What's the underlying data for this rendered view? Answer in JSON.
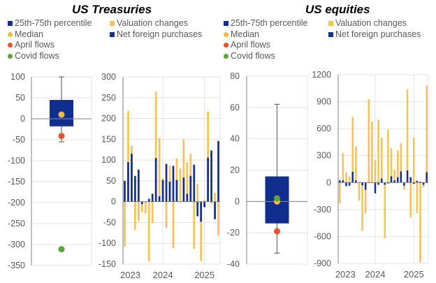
{
  "colors": {
    "box": "#0f2e8f",
    "median": "#f5b942",
    "april": "#e8532a",
    "covid": "#5aa43a",
    "valuation": "#f5c25a",
    "net_purchases": "#13308f",
    "grid": "#e3e3e3",
    "axis": "#808080"
  },
  "panels": [
    {
      "title": "US Treasuries",
      "legend_left": [
        "25th-75th percentile",
        "Median",
        "April flows",
        "Covid flows"
      ],
      "legend_right": [
        "Valuation changes",
        "Net foreign purchases"
      ]
    },
    {
      "title": "US equities",
      "legend_left": [
        "25th-75th percentile",
        "Median",
        "April flows",
        "Covid flows"
      ],
      "legend_right": [
        "Valuation changes",
        "Net foreign purchases"
      ]
    }
  ],
  "chart_data": [
    {
      "id": "treasuries-box",
      "type": "box",
      "title": "US Treasuries",
      "ylim": [
        -350,
        100
      ],
      "yticks": [
        100,
        50,
        0,
        -50,
        -100,
        -150,
        -200,
        -250,
        -300,
        -350
      ],
      "whisker_low": -55,
      "q1": -18,
      "q3": 45,
      "whisker_high": 100,
      "median": 10,
      "april_flows": -41,
      "covid_flows": -311,
      "grid": true
    },
    {
      "id": "treasuries-bars",
      "type": "bar",
      "title": "US Treasuries",
      "ylim": [
        -150,
        300
      ],
      "yticks": [
        300,
        250,
        200,
        150,
        100,
        50,
        0,
        -50,
        -100,
        -150
      ],
      "xticks": [
        "2023",
        "2024",
        "2025"
      ],
      "grid": true,
      "series": [
        {
          "name": "Valuation changes",
          "values": [
            -108,
            218,
            134,
            -68,
            -47,
            -24,
            -28,
            -143,
            -51,
            265,
            153,
            56,
            -63,
            87,
            -112,
            104,
            80,
            150,
            95,
            115,
            -113,
            43,
            -143,
            5,
            217,
            -6,
            21,
            -81
          ]
        },
        {
          "name": "Net foreign purchases",
          "values": [
            50,
            95,
            115,
            62,
            77,
            -6,
            0,
            7,
            19,
            105,
            13,
            52,
            91,
            48,
            86,
            52,
            0,
            58,
            19,
            62,
            89,
            -35,
            -48,
            -13,
            106,
            123,
            -42,
            146
          ]
        }
      ]
    },
    {
      "id": "equities-box",
      "type": "box",
      "title": "US equities",
      "ylim": [
        -40,
        80
      ],
      "yticks": [
        80,
        60,
        40,
        20,
        0,
        -20,
        -40
      ],
      "whisker_low": -33,
      "q1": -14,
      "q3": 16,
      "whisker_high": 62,
      "median": 0,
      "april_flows": -19,
      "covid_flows": 2,
      "grid": true
    },
    {
      "id": "equities-bars",
      "type": "bar",
      "title": "US equities",
      "ylim": [
        -900,
        1200
      ],
      "yticks": [
        1200,
        900,
        600,
        300,
        0,
        -300,
        -600,
        -900
      ],
      "xticks": [
        "2023",
        "2024",
        "2025"
      ],
      "grid": true,
      "series": [
        {
          "name": "Valuation changes",
          "values": [
            -230,
            330,
            110,
            70,
            730,
            400,
            -200,
            -540,
            -340,
            930,
            680,
            250,
            700,
            500,
            -620,
            590,
            380,
            140,
            360,
            440,
            -80,
            1040,
            -390,
            500,
            -340,
            -890,
            -50,
            1080
          ]
        },
        {
          "name": "Net foreign purchases",
          "values": [
            25,
            25,
            -40,
            -35,
            120,
            25,
            0,
            -30,
            -80,
            0,
            0,
            -120,
            -25,
            45,
            -25,
            -10,
            70,
            25,
            60,
            125,
            -35,
            135,
            60,
            -15,
            20,
            10,
            -25,
            115
          ]
        }
      ]
    }
  ]
}
